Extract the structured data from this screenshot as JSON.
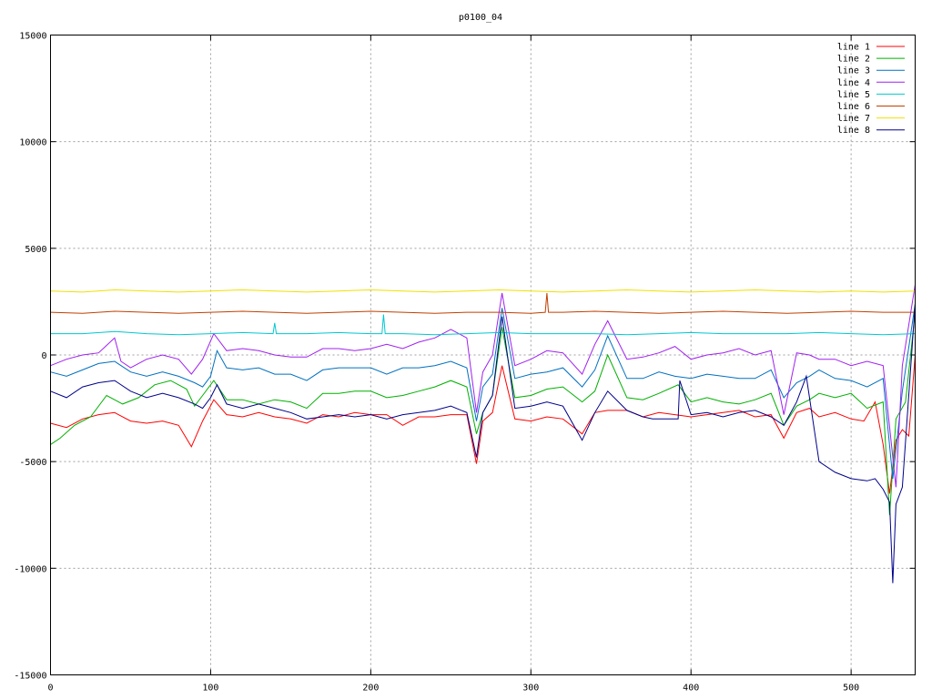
{
  "chart_data": {
    "type": "line",
    "title": "p0100_04",
    "xlabel": "",
    "ylabel": "",
    "xlim": [
      0,
      540
    ],
    "ylim": [
      -15000,
      15000
    ],
    "x_ticks": [
      0,
      100,
      200,
      300,
      400,
      500
    ],
    "y_ticks": [
      -15000,
      -10000,
      -5000,
      0,
      5000,
      10000,
      15000
    ],
    "grid": true,
    "legend_position": "top-right",
    "series": [
      {
        "name": "line 1",
        "color": "#ff0000",
        "x": [
          0,
          10,
          20,
          30,
          40,
          50,
          60,
          70,
          80,
          88,
          95,
          102,
          110,
          120,
          130,
          140,
          150,
          160,
          170,
          180,
          190,
          200,
          210,
          220,
          230,
          240,
          250,
          260,
          266,
          270,
          276,
          282,
          290,
          300,
          310,
          320,
          332,
          340,
          348,
          360,
          370,
          380,
          390,
          400,
          410,
          420,
          430,
          440,
          450,
          458,
          466,
          474,
          480,
          490,
          500,
          508,
          515,
          520,
          524,
          528,
          532,
          536,
          540
        ],
        "y": [
          -3200,
          -3400,
          -3000,
          -2800,
          -2700,
          -3100,
          -3200,
          -3100,
          -3300,
          -4300,
          -3100,
          -2100,
          -2800,
          -2900,
          -2700,
          -2900,
          -3000,
          -3200,
          -2800,
          -2900,
          -2700,
          -2800,
          -2800,
          -3300,
          -2900,
          -2900,
          -2800,
          -2800,
          -5100,
          -3100,
          -2700,
          -500,
          -3000,
          -3100,
          -2900,
          -3000,
          -3700,
          -2700,
          -2600,
          -2600,
          -2900,
          -2700,
          -2800,
          -2900,
          -2800,
          -2700,
          -2600,
          -2900,
          -2800,
          -3900,
          -2700,
          -2500,
          -2900,
          -2700,
          -3000,
          -3100,
          -2200,
          -4200,
          -6500,
          -4000,
          -3500,
          -3800,
          0
        ]
      },
      {
        "name": "line 2",
        "color": "#00b000",
        "x": [
          0,
          6,
          15,
          25,
          35,
          45,
          55,
          65,
          75,
          85,
          90,
          95,
          102,
          110,
          120,
          130,
          140,
          150,
          160,
          170,
          180,
          190,
          200,
          210,
          220,
          230,
          240,
          250,
          260,
          266,
          270,
          276,
          282,
          290,
          300,
          310,
          320,
          332,
          340,
          348,
          360,
          370,
          380,
          392,
          400,
          410,
          420,
          430,
          440,
          450,
          458,
          466,
          474,
          480,
          490,
          500,
          510,
          520,
          524,
          528,
          534,
          540
        ],
        "y": [
          -4200,
          -3900,
          -3300,
          -2900,
          -1900,
          -2300,
          -2000,
          -1400,
          -1200,
          -1600,
          -2400,
          -1900,
          -1200,
          -2100,
          -2100,
          -2300,
          -2100,
          -2200,
          -2500,
          -1800,
          -1800,
          -1700,
          -1700,
          -2000,
          -1900,
          -1700,
          -1500,
          -1200,
          -1500,
          -3700,
          -2700,
          -1900,
          1300,
          -2000,
          -1900,
          -1600,
          -1500,
          -2200,
          -1700,
          0,
          -2000,
          -2100,
          -1800,
          -1400,
          -2200,
          -2000,
          -2200,
          -2300,
          -2100,
          -1800,
          -3300,
          -2400,
          -2100,
          -1800,
          -2000,
          -1800,
          -2500,
          -2200,
          -7500,
          -3000,
          -2200,
          2000
        ]
      },
      {
        "name": "line 3",
        "color": "#0070c0",
        "x": [
          0,
          10,
          20,
          30,
          40,
          50,
          60,
          70,
          80,
          90,
          95,
          100,
          104,
          110,
          120,
          130,
          140,
          150,
          160,
          170,
          180,
          190,
          200,
          210,
          220,
          230,
          240,
          250,
          260,
          266,
          270,
          276,
          282,
          290,
          300,
          310,
          320,
          332,
          340,
          348,
          360,
          370,
          380,
          390,
          400,
          410,
          420,
          430,
          440,
          450,
          458,
          466,
          474,
          480,
          490,
          500,
          510,
          520,
          526,
          532,
          540
        ],
        "y": [
          -800,
          -1000,
          -700,
          -400,
          -300,
          -800,
          -1000,
          -800,
          -1000,
          -1300,
          -1500,
          -1000,
          200,
          -600,
          -700,
          -600,
          -900,
          -900,
          -1200,
          -700,
          -600,
          -600,
          -600,
          -900,
          -600,
          -600,
          -500,
          -300,
          -600,
          -3100,
          -1500,
          -900,
          2200,
          -1100,
          -900,
          -800,
          -600,
          -1500,
          -700,
          900,
          -1100,
          -1100,
          -800,
          -1000,
          -1100,
          -900,
          -1000,
          -1100,
          -1100,
          -700,
          -2000,
          -1300,
          -1000,
          -700,
          -1100,
          -1200,
          -1500,
          -1100,
          -5800,
          -1700,
          2400
        ]
      },
      {
        "name": "line 4",
        "color": "#a020f0",
        "x": [
          0,
          10,
          20,
          30,
          40,
          44,
          50,
          60,
          70,
          80,
          88,
          95,
          102,
          110,
          120,
          130,
          140,
          150,
          160,
          170,
          180,
          190,
          200,
          210,
          220,
          230,
          240,
          250,
          260,
          266,
          270,
          276,
          282,
          290,
          300,
          310,
          320,
          332,
          340,
          348,
          360,
          370,
          380,
          390,
          400,
          410,
          420,
          430,
          440,
          450,
          458,
          466,
          474,
          480,
          490,
          500,
          510,
          520,
          528,
          532,
          540
        ],
        "y": [
          -500,
          -200,
          0,
          100,
          800,
          -300,
          -600,
          -200,
          0,
          -200,
          -900,
          -200,
          1000,
          200,
          300,
          200,
          0,
          -100,
          -100,
          300,
          300,
          200,
          300,
          500,
          300,
          600,
          800,
          1200,
          800,
          -2700,
          -800,
          0,
          2900,
          -500,
          -200,
          200,
          100,
          -900,
          500,
          1600,
          -200,
          -100,
          100,
          400,
          -200,
          0,
          100,
          300,
          0,
          200,
          -2800,
          100,
          0,
          -200,
          -200,
          -500,
          -300,
          -500,
          -6200,
          -500,
          3300
        ]
      },
      {
        "name": "line 5",
        "color": "#00c8d0",
        "x": [
          0,
          20,
          40,
          60,
          80,
          100,
          120,
          139,
          140,
          141,
          160,
          180,
          200,
          207,
          208,
          209,
          220,
          240,
          260,
          280,
          300,
          320,
          340,
          360,
          380,
          400,
          420,
          440,
          460,
          480,
          500,
          520,
          540
        ],
        "y": [
          1000,
          1000,
          1100,
          1000,
          950,
          1000,
          1050,
          1000,
          1500,
          1000,
          1000,
          1050,
          1000,
          1000,
          1900,
          1000,
          1000,
          950,
          1000,
          1050,
          1000,
          1000,
          1000,
          950,
          1000,
          1050,
          1000,
          1000,
          1000,
          1050,
          1000,
          950,
          1000
        ]
      },
      {
        "name": "line 6",
        "color": "#c04000",
        "x": [
          0,
          20,
          40,
          60,
          80,
          100,
          120,
          140,
          160,
          180,
          200,
          220,
          240,
          260,
          280,
          300,
          309,
          310,
          311,
          320,
          340,
          360,
          380,
          400,
          420,
          440,
          460,
          480,
          500,
          520,
          540
        ],
        "y": [
          2000,
          1950,
          2050,
          2000,
          1950,
          2000,
          2050,
          2000,
          1950,
          2000,
          2050,
          2000,
          1950,
          2000,
          2000,
          1950,
          2000,
          2900,
          2000,
          2000,
          2050,
          2000,
          1950,
          2000,
          2050,
          2000,
          1950,
          2000,
          2050,
          2000,
          2000
        ]
      },
      {
        "name": "line 7",
        "color": "#f0e000",
        "x": [
          0,
          20,
          40,
          60,
          80,
          100,
          120,
          140,
          160,
          180,
          200,
          220,
          240,
          260,
          280,
          300,
          320,
          340,
          360,
          380,
          400,
          420,
          440,
          460,
          480,
          500,
          520,
          540
        ],
        "y": [
          3000,
          2950,
          3050,
          3000,
          2950,
          3000,
          3050,
          3000,
          2950,
          3000,
          3050,
          3000,
          2950,
          3000,
          3050,
          3000,
          2950,
          3000,
          3050,
          3000,
          2950,
          3000,
          3050,
          3000,
          2950,
          3000,
          2950,
          3000
        ]
      },
      {
        "name": "line 8",
        "color": "#00008b",
        "x": [
          0,
          10,
          20,
          30,
          40,
          50,
          60,
          70,
          80,
          90,
          95,
          100,
          104,
          110,
          120,
          130,
          140,
          150,
          160,
          170,
          180,
          190,
          200,
          210,
          220,
          230,
          240,
          250,
          260,
          266,
          270,
          276,
          282,
          290,
          300,
          310,
          320,
          332,
          340,
          348,
          360,
          370,
          376,
          392,
          393,
          400,
          410,
          420,
          430,
          440,
          450,
          458,
          466,
          472,
          480,
          490,
          500,
          510,
          515,
          520,
          524,
          526,
          528,
          532,
          540
        ],
        "y": [
          -1700,
          -2000,
          -1500,
          -1300,
          -1200,
          -1700,
          -2000,
          -1800,
          -2000,
          -2300,
          -2500,
          -2000,
          -1400,
          -2300,
          -2500,
          -2300,
          -2500,
          -2700,
          -3000,
          -2900,
          -2800,
          -2900,
          -2800,
          -3000,
          -2800,
          -2700,
          -2600,
          -2400,
          -2700,
          -4800,
          -2700,
          -1900,
          1800,
          -2500,
          -2400,
          -2200,
          -2400,
          -4000,
          -2700,
          -1700,
          -2600,
          -2900,
          -3000,
          -3000,
          -1200,
          -2800,
          -2700,
          -2900,
          -2700,
          -2600,
          -2900,
          -3300,
          -2200,
          -1000,
          -5000,
          -5500,
          -5800,
          -5900,
          -5800,
          -6300,
          -6900,
          -10700,
          -7000,
          -6200,
          2400
        ]
      }
    ]
  }
}
